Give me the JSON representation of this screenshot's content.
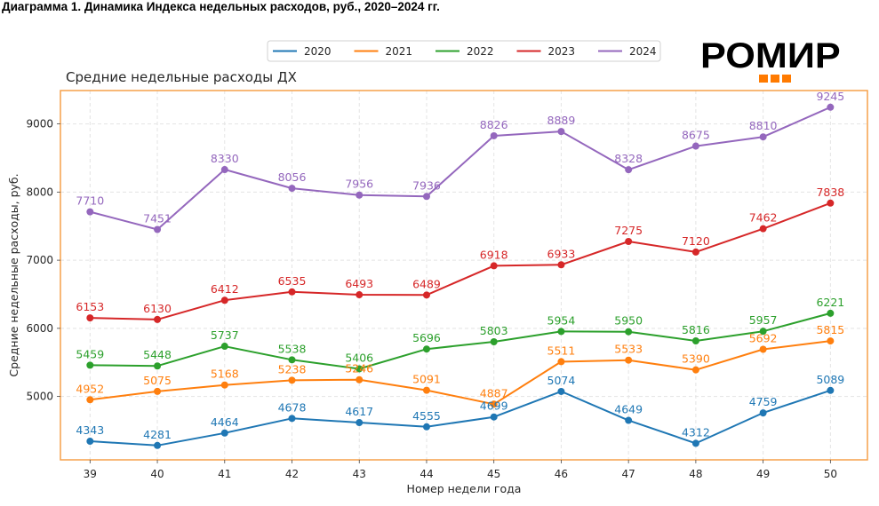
{
  "figure": {
    "title": "Диаграмма 1. Динамика Индекса недельных расходов, руб., 2020–2024 гг.",
    "logo": {
      "text": "РОМИР",
      "accent_color": "#ff7a00",
      "dots": 3
    },
    "frame_color": "#f5a04a"
  },
  "chart_data": {
    "type": "line",
    "title": "Средние недельные расходы ДХ",
    "xlabel": "Номер недели года",
    "ylabel": "Средние недельные расходы, руб.",
    "x": [
      39,
      40,
      41,
      42,
      43,
      44,
      45,
      46,
      47,
      48,
      49,
      50
    ],
    "x_tick_labels": [
      "39",
      "40",
      "41",
      "42",
      "43",
      "44",
      "45",
      "46",
      "47",
      "48",
      "49",
      "50"
    ],
    "y_ticks": [
      5000,
      6000,
      7000,
      8000,
      9000
    ],
    "y_tick_labels": [
      "5000",
      "6000",
      "7000",
      "8000",
      "9000"
    ],
    "ylim": [
      4070,
      9490
    ],
    "xlim": [
      38.56,
      50.55
    ],
    "grid": true,
    "legend_position": "top-center",
    "series": [
      {
        "name": "2020",
        "color": "#1f77b4",
        "values": [
          4343,
          4281,
          4464,
          4678,
          4617,
          4555,
          4699,
          5074,
          4649,
          4312,
          4759,
          5089
        ]
      },
      {
        "name": "2021",
        "color": "#ff7f0e",
        "values": [
          4952,
          5075,
          5168,
          5238,
          5246,
          5091,
          4887,
          5511,
          5533,
          5390,
          5692,
          5815
        ]
      },
      {
        "name": "2022",
        "color": "#2ca02c",
        "values": [
          5459,
          5448,
          5737,
          5538,
          5406,
          5696,
          5803,
          5954,
          5950,
          5816,
          5957,
          6221
        ]
      },
      {
        "name": "2023",
        "color": "#d62728",
        "values": [
          6153,
          6130,
          6412,
          6535,
          6493,
          6489,
          6918,
          6933,
          7275,
          7120,
          7462,
          7838
        ]
      },
      {
        "name": "2024",
        "color": "#9467bd",
        "values": [
          7710,
          7451,
          8330,
          8056,
          7956,
          7936,
          8826,
          8889,
          8328,
          8675,
          8810,
          9245
        ]
      }
    ]
  }
}
